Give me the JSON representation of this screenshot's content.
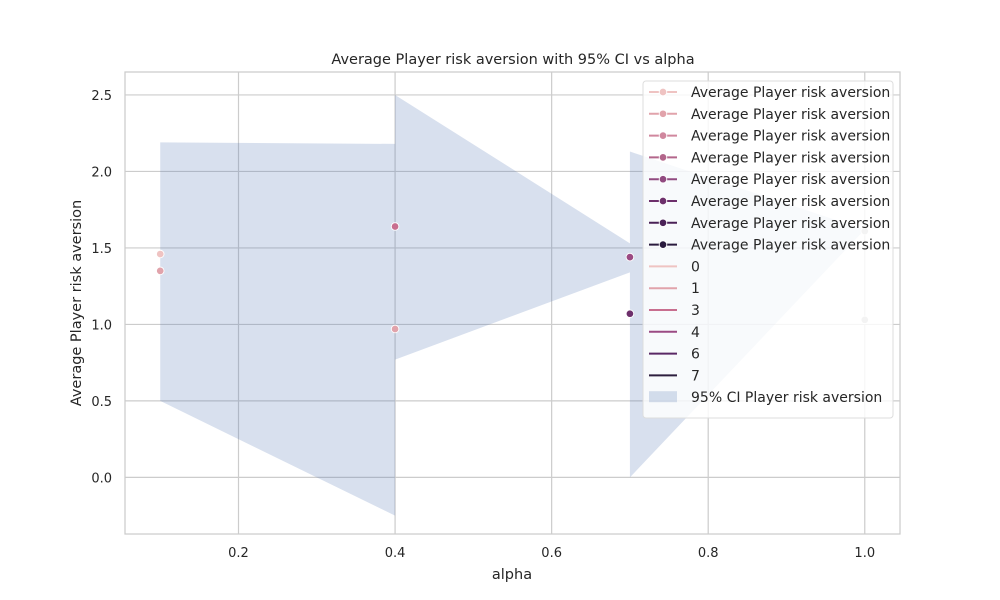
{
  "chart_data": {
    "type": "line",
    "title": "Average Player risk aversion with 95% CI vs alpha",
    "xlabel": "alpha",
    "ylabel": "Average Player risk aversion",
    "xlim": [
      0.055,
      1.045
    ],
    "ylim": [
      -0.37,
      2.65
    ],
    "xticks": [
      0.2,
      0.4,
      0.6,
      0.8,
      1.0
    ],
    "xtick_labels": [
      "0.2",
      "0.4",
      "0.6",
      "0.8",
      "1.0"
    ],
    "yticks": [
      0.0,
      0.5,
      1.0,
      1.5,
      2.0,
      2.5
    ],
    "ytick_labels": [
      "0.0",
      "0.5",
      "1.0",
      "1.5",
      "2.0",
      "2.5"
    ],
    "grid": true,
    "legend_position": "top-right",
    "ci_band": {
      "name": "95% CI Player risk aversion",
      "color": "#4c72b0",
      "x": [
        0.1,
        0.4,
        0.4,
        0.7,
        0.7,
        1.0
      ],
      "lower": [
        0.5,
        -0.25,
        0.77,
        1.34,
        0.0,
        1.62
      ],
      "upper": [
        2.19,
        2.18,
        2.5,
        1.53,
        2.13,
        1.62
      ]
    },
    "points": [
      {
        "x": 0.1,
        "y": 1.46,
        "hue": "0",
        "color": "#efc3c2"
      },
      {
        "x": 0.1,
        "y": 1.35,
        "hue": "1",
        "color": "#e1a3ab"
      },
      {
        "x": 0.4,
        "y": 1.64,
        "hue": "3",
        "color": "#c86e8f"
      },
      {
        "x": 0.4,
        "y": 0.97,
        "hue": "1",
        "color": "#e1a3ab"
      },
      {
        "x": 0.7,
        "y": 1.44,
        "hue": "4",
        "color": "#9b4a83"
      },
      {
        "x": 0.7,
        "y": 1.07,
        "hue": "6",
        "color": "#6d2f6b"
      },
      {
        "x": 1.0,
        "y": 1.61,
        "hue": "",
        "color": "#bbbbbb"
      },
      {
        "x": 1.0,
        "y": 1.03,
        "hue": "",
        "color": "#bbbbbb"
      }
    ],
    "legend": [
      {
        "kind": "marker-line",
        "label": "Average Player risk aversion",
        "color": "#efc3c2"
      },
      {
        "kind": "marker-line",
        "label": "Average Player risk aversion",
        "color": "#e1a3ab"
      },
      {
        "kind": "marker-line",
        "label": "Average Player risk aversion",
        "color": "#d0879e"
      },
      {
        "kind": "marker-line",
        "label": "Average Player risk aversion",
        "color": "#b3668b"
      },
      {
        "kind": "marker-line",
        "label": "Average Player risk aversion",
        "color": "#914a80"
      },
      {
        "kind": "marker-line",
        "label": "Average Player risk aversion",
        "color": "#6d2f6b"
      },
      {
        "kind": "marker-line",
        "label": "Average Player risk aversion",
        "color": "#4a2157"
      },
      {
        "kind": "marker-line",
        "label": "Average Player risk aversion",
        "color": "#2a1a3e"
      },
      {
        "kind": "line",
        "label": "0",
        "color": "#efc3c2"
      },
      {
        "kind": "line",
        "label": "1",
        "color": "#e1a3ab"
      },
      {
        "kind": "line",
        "label": "3",
        "color": "#c86e8f"
      },
      {
        "kind": "line",
        "label": "4",
        "color": "#9b4a83"
      },
      {
        "kind": "line",
        "label": "6",
        "color": "#5a2865"
      },
      {
        "kind": "line",
        "label": "7",
        "color": "#2d1e3e"
      },
      {
        "kind": "patch",
        "label": "95% CI Player risk aversion",
        "color": "#4c72b0"
      }
    ]
  }
}
